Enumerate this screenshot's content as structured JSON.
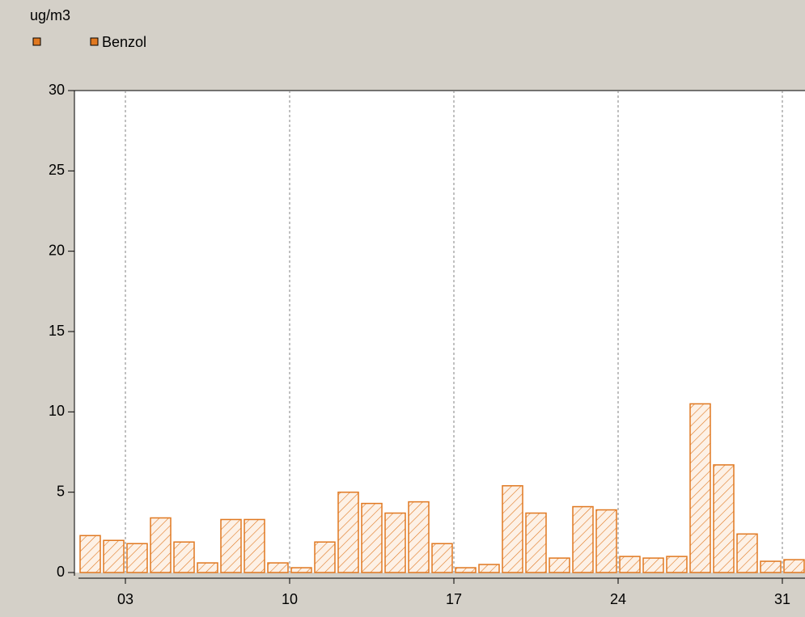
{
  "chart_data": {
    "type": "bar",
    "y_label": "ug/m3",
    "categories": [
      null,
      null,
      "03",
      null,
      null,
      null,
      null,
      null,
      null,
      "10",
      null,
      null,
      null,
      null,
      null,
      null,
      "17",
      null,
      null,
      null,
      null,
      null,
      null,
      "24",
      null,
      null,
      null,
      null,
      null,
      null,
      "31"
    ],
    "series": [
      {
        "name": "Benzol",
        "color": "#e07820",
        "values": [
          2.3,
          2.0,
          1.8,
          3.4,
          1.9,
          0.6,
          3.3,
          3.3,
          0.6,
          0.3,
          1.9,
          5.0,
          4.3,
          3.7,
          4.4,
          1.8,
          0.3,
          0.5,
          5.4,
          3.7,
          0.9,
          4.1,
          3.9,
          1.0,
          0.9,
          1.0,
          10.5,
          6.7,
          2.4,
          0.7,
          0.8
        ]
      }
    ],
    "ylim": [
      0,
      30
    ],
    "yticks": [
      0,
      5,
      10,
      15,
      20,
      25,
      30
    ],
    "grid": true
  }
}
